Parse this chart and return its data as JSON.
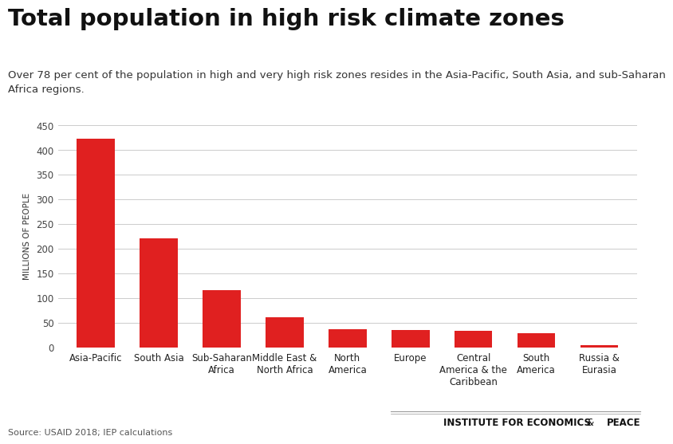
{
  "title": "Total population in high risk climate zones",
  "subtitle": "Over 78 per cent of the population in high and very high risk zones resides in the Asia-Pacific, South Asia, and sub-Saharan\nAfrica regions.",
  "categories": [
    "Asia-Pacific",
    "South Asia",
    "Sub-Saharan\nAfrica",
    "Middle East &\nNorth Africa",
    "North\nAmerica",
    "Europe",
    "Central\nAmerica & the\nCaribbean",
    "South\nAmerica",
    "Russia &\nEurasia"
  ],
  "values": [
    422,
    220,
    116,
    60,
    37,
    35,
    33,
    29,
    5
  ],
  "bar_color": "#e02020",
  "ylabel": "MILLIONS OF PEOPLE",
  "ylim": [
    0,
    450
  ],
  "yticks": [
    0,
    50,
    100,
    150,
    200,
    250,
    300,
    350,
    400,
    450
  ],
  "source_text": "Source: USAID 2018; IEP calculations",
  "background_color": "#ffffff",
  "title_fontsize": 21,
  "subtitle_fontsize": 9.5,
  "ylabel_fontsize": 7.5,
  "tick_fontsize": 8.5,
  "source_fontsize": 8,
  "branding_fontsize": 8.5
}
